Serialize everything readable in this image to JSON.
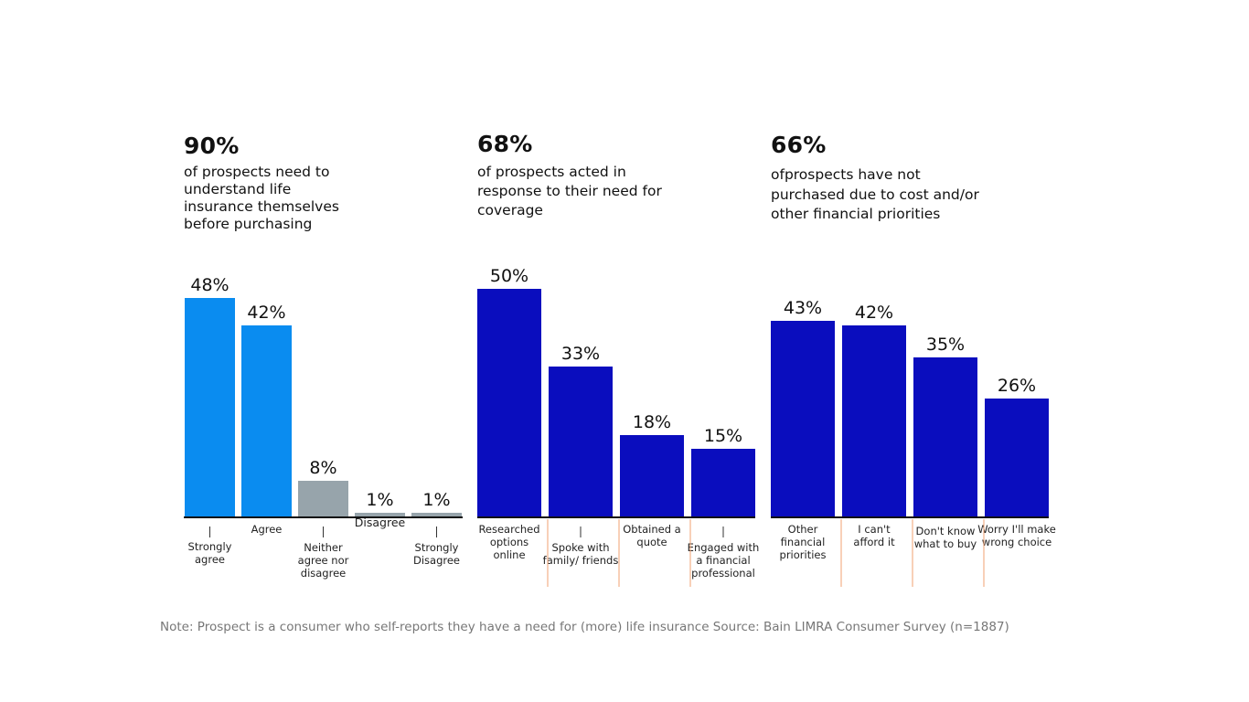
{
  "panels": [
    {
      "headline": "90%",
      "description": [
        "of prospects need to",
        "understand life",
        "insurance themselves",
        "before purchasing"
      ]
    },
    {
      "headline": "68%",
      "description": [
        "of prospects acted in",
        "response to their need for",
        "coverage"
      ]
    },
    {
      "headline": "66%",
      "description": [
        "ofprospects have not",
        "purchased due to cost and/or",
        "other financial priorities"
      ]
    }
  ],
  "colors": {
    "light_blue": "#0A8CF0",
    "gray": "#97A4AB",
    "dark_blue": "#0A0DBE",
    "orange_divider": "#F0A070"
  },
  "chart_data": [
    {
      "type": "bar",
      "categories": [
        [
          "Strongly",
          "agree"
        ],
        [
          "Agree"
        ],
        [
          "Neither",
          "agree nor",
          "disagree"
        ],
        [
          "Disagree"
        ],
        [
          "Strongly",
          "Disagree"
        ]
      ],
      "values": [
        48,
        42,
        8,
        1,
        1
      ],
      "value_labels": [
        "48%",
        "42%",
        "8%",
        "1%",
        "1%"
      ],
      "bar_colors": [
        "light_blue",
        "light_blue",
        "gray",
        "gray",
        "gray"
      ]
    },
    {
      "type": "bar",
      "categories": [
        [
          "Researched",
          "options",
          "online"
        ],
        [
          "Spoke with",
          "family/ friends"
        ],
        [
          "Obtained a",
          "quote"
        ],
        [
          "Engaged with",
          "a financial",
          "professional"
        ]
      ],
      "values": [
        50,
        33,
        18,
        15
      ],
      "value_labels": [
        "50%",
        "33%",
        "18%",
        "15%"
      ],
      "bar_colors": [
        "dark_blue",
        "dark_blue",
        "dark_blue",
        "dark_blue"
      ]
    },
    {
      "type": "bar",
      "categories": [
        [
          "Other",
          "financial",
          "priorities"
        ],
        [
          "I can't",
          "afford it"
        ],
        [
          "Don't know",
          "what to buy"
        ],
        [
          "Worry I'll make",
          "wrong choice"
        ]
      ],
      "values": [
        43,
        42,
        35,
        26
      ],
      "value_labels": [
        "43%",
        "42%",
        "35%",
        "26%"
      ],
      "bar_colors": [
        "dark_blue",
        "dark_blue",
        "dark_blue",
        "dark_blue"
      ]
    }
  ],
  "note": "Note: Prospect is a consumer who self-reports they have a need for (more) life insurance Source: Bain LIMRA Consumer Survey (n=1887)"
}
